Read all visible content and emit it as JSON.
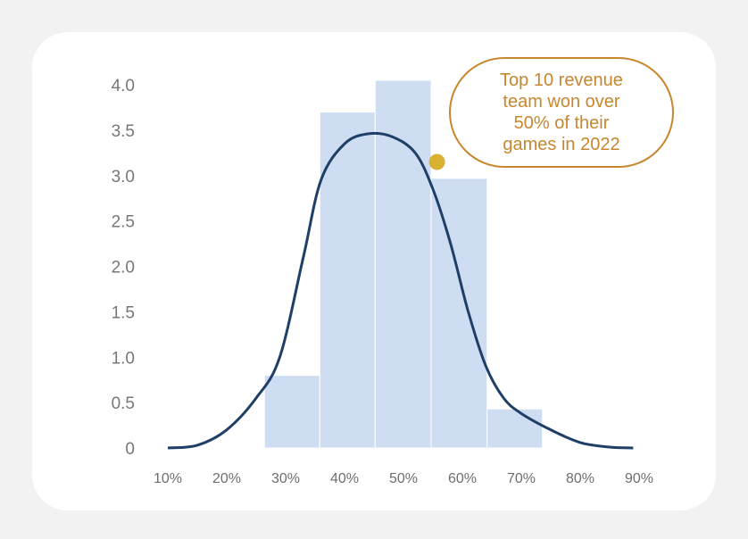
{
  "chart_data": {
    "type": "bar",
    "subtype": "histogram-with-density-curve",
    "x_ticks": [
      "10%",
      "20%",
      "30%",
      "40%",
      "50%",
      "60%",
      "70%",
      "80%",
      "90%"
    ],
    "y_ticks": [
      "0",
      "0.5",
      "1.0",
      "1.5",
      "2.0",
      "2.5",
      "3.0",
      "3.5",
      "4.0"
    ],
    "xlim": [
      0.1,
      0.9
    ],
    "ylim": [
      0,
      4.0
    ],
    "bins": [
      {
        "x0": 0.264,
        "x1": 0.358,
        "value": 0.8
      },
      {
        "x0": 0.358,
        "x1": 0.452,
        "value": 3.7
      },
      {
        "x0": 0.452,
        "x1": 0.547,
        "value": 4.05
      },
      {
        "x0": 0.547,
        "x1": 0.642,
        "value": 2.97
      },
      {
        "x0": 0.642,
        "x1": 0.736,
        "value": 0.43
      }
    ],
    "density_curve": {
      "x": [
        0.1,
        0.15,
        0.2,
        0.25,
        0.29,
        0.33,
        0.36,
        0.4,
        0.44,
        0.48,
        0.52,
        0.55,
        0.58,
        0.61,
        0.64,
        0.67,
        0.7,
        0.75,
        0.8,
        0.85,
        0.89
      ],
      "y": [
        0.0,
        0.03,
        0.2,
        0.55,
        1.0,
        2.1,
        2.95,
        3.35,
        3.46,
        3.43,
        3.25,
        2.85,
        2.25,
        1.5,
        0.9,
        0.55,
        0.38,
        0.2,
        0.06,
        0.01,
        0.0
      ]
    },
    "highlight_point": {
      "x": 0.557,
      "y": 3.15
    },
    "annotation": "Top 10 revenue\nteam  won over\n50% of their\ngames in 2022",
    "legend": "none",
    "grid": false,
    "title": "",
    "xlabel": "",
    "ylabel": ""
  },
  "colors": {
    "bar_fill": "#cfddf3",
    "curve": "#1f3f66",
    "point": "#d9b232",
    "annotation": "#c8862e",
    "tick_y": "#777777",
    "tick_x": "#6e6e6e"
  }
}
